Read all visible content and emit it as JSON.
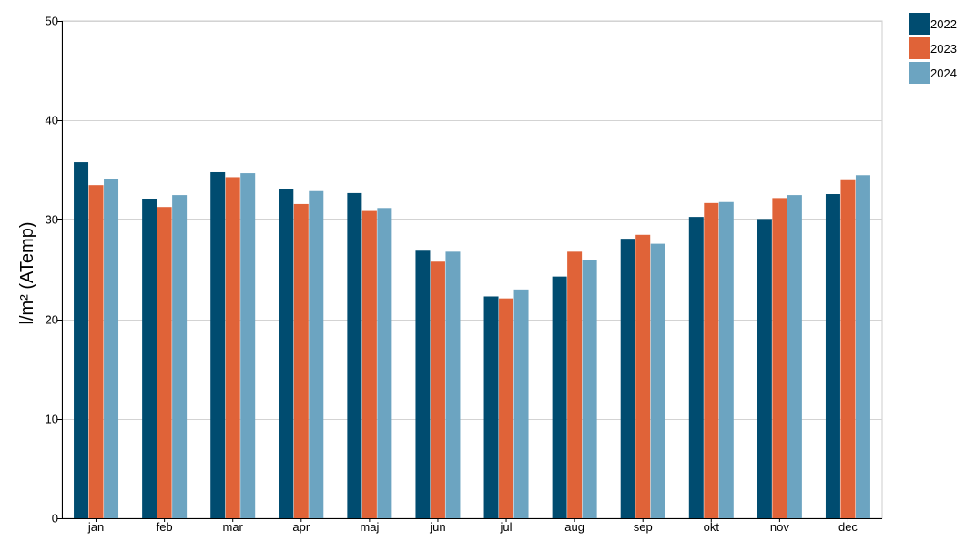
{
  "chart_data": {
    "type": "bar",
    "title": "",
    "xlabel": "",
    "ylabel": "l/m² (ATemp)",
    "ylim": [
      0,
      50
    ],
    "yticks": [
      0,
      10,
      20,
      30,
      40,
      50
    ],
    "grid": true,
    "legend_position": "top-right",
    "categories": [
      "jan",
      "feb",
      "mar",
      "apr",
      "maj",
      "jun",
      "jul",
      "aug",
      "sep",
      "okt",
      "nov",
      "dec"
    ],
    "series": [
      {
        "name": "2022",
        "color": "#004c70",
        "values": [
          35.8,
          32.1,
          34.8,
          33.1,
          32.7,
          26.9,
          22.3,
          24.3,
          28.1,
          30.3,
          30.0,
          32.6
        ]
      },
      {
        "name": "2023",
        "color": "#e06338",
        "values": [
          33.5,
          31.3,
          34.3,
          31.6,
          30.9,
          25.8,
          22.1,
          26.8,
          28.5,
          31.7,
          32.2,
          34.0
        ]
      },
      {
        "name": "2024",
        "color": "#6ca4c1",
        "values": [
          34.1,
          32.5,
          34.7,
          32.9,
          31.2,
          26.8,
          23.0,
          26.0,
          27.6,
          31.8,
          32.5,
          34.5
        ]
      }
    ]
  }
}
